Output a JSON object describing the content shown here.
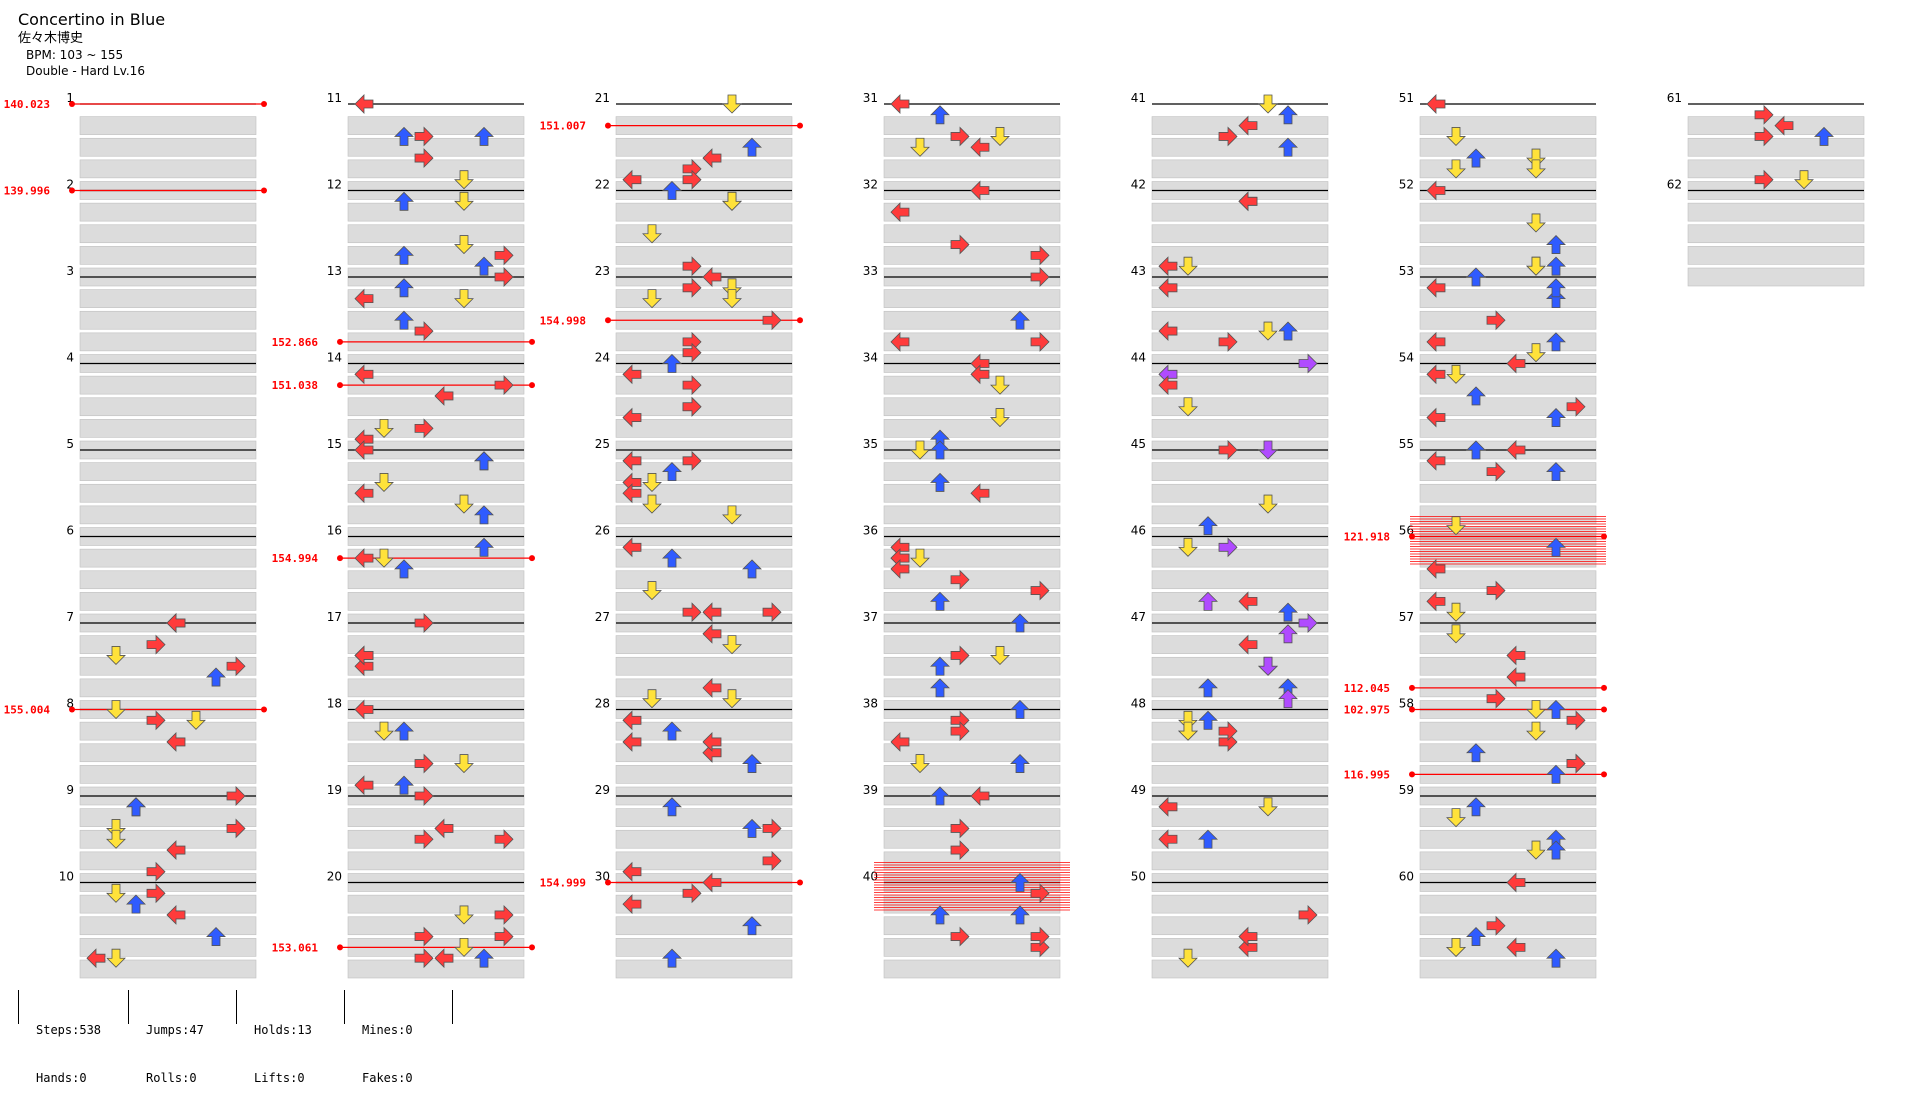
{
  "song": {
    "title": "Concertino in Blue",
    "artist": "佐々木博史",
    "bpm": "BPM: 103 ~ 155",
    "difficulty": "Double - Hard Lv.16"
  },
  "measures_total": 62,
  "measures_per_column": 10,
  "colors": {
    "up": "#2f5bff",
    "down": "#ffe23a",
    "left": "#ff3b3b",
    "right": "#ff3b3b",
    "purple": "#b04bff",
    "green": "#3bd93b",
    "orange": "#ff8a2a",
    "cyan": "#3fe0ff",
    "hold": "#a6efa6",
    "bpm_change": "#ff0000",
    "lane_bg": "#dcdcdc"
  },
  "bpm_changes": [
    {
      "measure": 1,
      "beat": 0,
      "label": "140.023"
    },
    {
      "measure": 2,
      "beat": 0,
      "label": "139.996"
    },
    {
      "measure": 8,
      "beat": 0,
      "label": "155.004"
    },
    {
      "measure": 13,
      "beat": 3,
      "label": "152.866"
    },
    {
      "measure": 14,
      "beat": 1,
      "label": "151.038"
    },
    {
      "measure": 16,
      "beat": 1,
      "label": "154.994"
    },
    {
      "measure": 20,
      "beat": 3,
      "label": "153.061"
    },
    {
      "measure": 21,
      "beat": 1,
      "label": "151.007"
    },
    {
      "measure": 23,
      "beat": 2,
      "label": "154.998"
    },
    {
      "measure": 30,
      "beat": 0,
      "label": "154.999"
    },
    {
      "measure": 56,
      "beat": 0,
      "label": "121.918"
    },
    {
      "measure": 57,
      "beat": 3,
      "label": "112.045"
    },
    {
      "measure": 58,
      "beat": 0,
      "label": "102.975"
    },
    {
      "measure": 58,
      "beat": 3,
      "label": "116.995"
    }
  ],
  "stops": [
    {
      "measure": 40,
      "beat": 0
    },
    {
      "measure": 56,
      "beat": 0
    }
  ],
  "stats": {
    "steps": "Steps:538",
    "hands": "Hands:0",
    "jumps": "Jumps:47",
    "rolls": "Rolls:0",
    "holds": "Holds:13",
    "lifts": "Lifts:0",
    "mines": "Mines:0",
    "fakes": "Fakes:0"
  }
}
